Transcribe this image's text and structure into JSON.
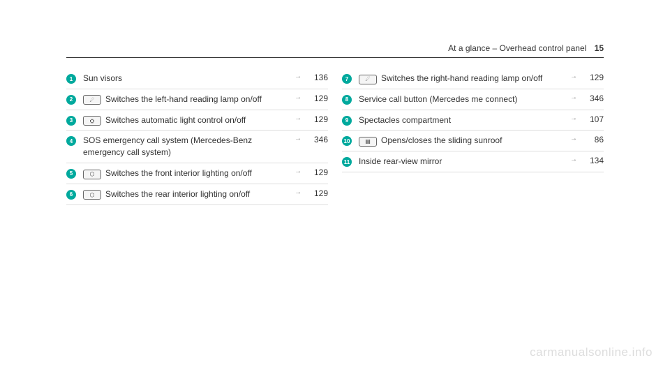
{
  "header": {
    "section_title": "At a glance – Overhead control panel",
    "page_number": "15"
  },
  "left_column": [
    {
      "num": "1",
      "icon": "",
      "text": "Sun visors",
      "page": "136"
    },
    {
      "num": "2",
      "icon": "☄",
      "text": "Switches the left-hand reading lamp on/off",
      "page": "129"
    },
    {
      "num": "3",
      "icon": "⛭",
      "text": "Switches automatic light control on/off",
      "page": "129"
    },
    {
      "num": "4",
      "icon": "",
      "text": "SOS emergency call system (Mercedes-Benz emergency call system)",
      "page": "346"
    },
    {
      "num": "5",
      "icon": "⬡",
      "text": "Switches the front interior lighting on/off",
      "page": "129"
    },
    {
      "num": "6",
      "icon": "⬡",
      "text": "Switches the rear interior lighting on/off",
      "page": "129"
    }
  ],
  "right_column": [
    {
      "num": "7",
      "icon": "☄",
      "text": "Switches the right-hand reading lamp on/off",
      "page": "129"
    },
    {
      "num": "8",
      "icon": "",
      "text": "Service call button (Mercedes me connect)",
      "page": "346"
    },
    {
      "num": "9",
      "icon": "",
      "text": "Spectacles compartment",
      "page": "107"
    },
    {
      "num": "10",
      "icon": "▤",
      "text": "Opens/closes the sliding sunroof",
      "page": "86"
    },
    {
      "num": "11",
      "icon": "",
      "text": "Inside rear-view mirror",
      "page": "134"
    }
  ],
  "watermark": "carmanualsonline.info"
}
